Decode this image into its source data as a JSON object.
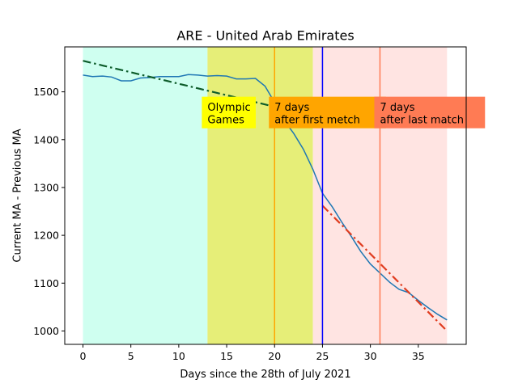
{
  "chart_data": {
    "type": "line",
    "title": "ARE - United Arab Emirates",
    "xlabel": "Days since the 28th of July 2021",
    "ylabel": "Current MA - Previous MA",
    "xlim": [
      -1.9,
      40.0
    ],
    "ylim": [
      972,
      1594
    ],
    "xticks": [
      0,
      5,
      10,
      15,
      20,
      25,
      30,
      35
    ],
    "yticks": [
      1000,
      1100,
      1200,
      1300,
      1400,
      1500
    ],
    "grid": false,
    "spans": [
      {
        "name": "before",
        "x0": 0,
        "x1": 13,
        "color": "#cffff0"
      },
      {
        "name": "olympics",
        "x0": 13,
        "x1": 24,
        "color": "#e6ee78"
      },
      {
        "name": "after",
        "x0": 24,
        "x1": 38,
        "color": "#ffe4e2"
      }
    ],
    "vlines": [
      {
        "name": "first-match",
        "x": 20,
        "color": "#ffa500"
      },
      {
        "name": "olympics-end",
        "x": 25,
        "color": "#0000ff"
      },
      {
        "name": "last-match",
        "x": 31,
        "color": "#ff7b54"
      }
    ],
    "annotations": [
      {
        "name": "olympic-games",
        "lines": [
          "Olympic",
          "Games"
        ],
        "x": 13,
        "y": 1434,
        "bg": "#ffff00"
      },
      {
        "name": "first-match",
        "lines": [
          "7 days",
          "after first metch"
        ],
        "x": 20,
        "y": 1434,
        "bg": "#ffa500"
      },
      {
        "name": "last-match",
        "lines": [
          "7 days",
          "after last match"
        ],
        "x": 31,
        "y": 1434,
        "bg": "#ff7b54"
      }
    ],
    "series": [
      {
        "style": "solid",
        "color": "#1f77b4",
        "x": [
          0,
          1,
          2,
          3,
          4,
          5,
          6,
          7,
          8,
          9,
          10,
          11,
          12,
          13,
          14,
          15,
          16,
          17,
          18,
          19,
          20,
          21,
          22,
          23,
          24,
          25,
          26,
          27,
          28,
          29,
          30,
          31,
          32,
          33,
          34,
          35,
          36,
          37,
          38
        ],
        "y": [
          1535,
          1532,
          1533,
          1531,
          1523,
          1523,
          1529,
          1530,
          1532,
          1532,
          1532,
          1536,
          1535,
          1533,
          1534,
          1533,
          1527,
          1527,
          1528,
          1512,
          1478,
          1440,
          1413,
          1380,
          1338,
          1288,
          1260,
          1228,
          1198,
          1166,
          1140,
          1121,
          1102,
          1087,
          1080,
          1064,
          1049,
          1035,
          1023
        ]
      },
      {
        "style": "dashdot",
        "color": "#0d5c2a",
        "x": [
          0,
          20
        ],
        "y": [
          1565,
          1469
        ]
      },
      {
        "style": "dashdot",
        "color": "#e03c1f",
        "x": [
          25,
          38
        ],
        "y": [
          1262,
          1000
        ]
      }
    ]
  }
}
